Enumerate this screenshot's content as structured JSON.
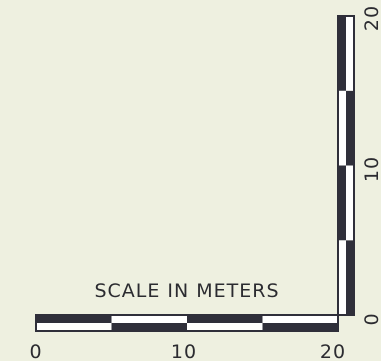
{
  "scale_bar": {
    "title": "SCALE IN METERS",
    "unit": "meters",
    "colors": {
      "background": "#eef0e0",
      "dark": "#2f2f3a",
      "light": "#ffffff",
      "outline": "#2f2f3a",
      "text": "#2b2b30"
    },
    "horizontal": {
      "range": [
        0,
        20
      ],
      "segment_length": 5,
      "segments": [
        "dark",
        "light",
        "dark",
        "light"
      ],
      "tick_labels": [
        "0",
        "10",
        "20"
      ]
    },
    "vertical": {
      "range": [
        0,
        20
      ],
      "segment_length": 5,
      "segments": [
        "dark",
        "light",
        "dark",
        "light"
      ],
      "tick_labels": [
        "0",
        "10",
        "20"
      ]
    }
  }
}
